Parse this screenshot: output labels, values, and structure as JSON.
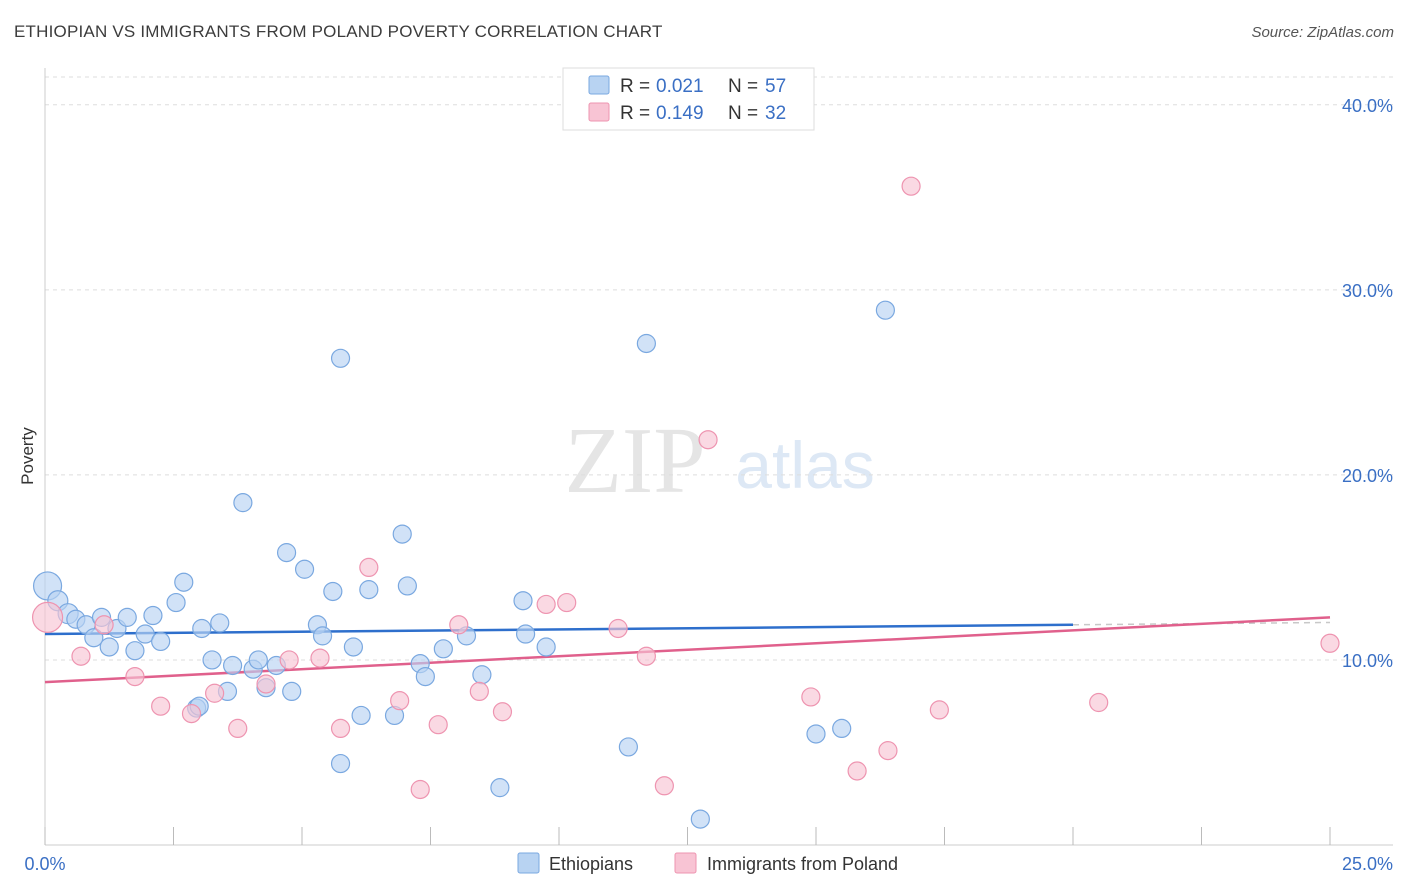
{
  "title": "ETHIOPIAN VS IMMIGRANTS FROM POLAND POVERTY CORRELATION CHART",
  "source": "Source: ZipAtlas.com",
  "watermark": {
    "zip": "ZIP",
    "atlas": "atlas"
  },
  "legend_top": [
    {
      "r_label": "R = ",
      "r_value": "0.021",
      "n_label": "N = ",
      "n_value": "57"
    },
    {
      "r_label": "R = ",
      "r_value": "0.149",
      "n_label": "N = ",
      "n_value": "32"
    }
  ],
  "colors": {
    "ethiopians_fill": "#b8d3f2",
    "ethiopians_stroke": "#7aa8e0",
    "ethiopians_line": "#2e6fcc",
    "poland_fill": "#f8c4d4",
    "poland_stroke": "#ee94b0",
    "poland_line": "#e0608c",
    "grid": "#dddddd",
    "tick_label": "#3a6fc4"
  },
  "chart_data": {
    "type": "scatter",
    "title": "ETHIOPIAN VS IMMIGRANTS FROM POLAND POVERTY CORRELATION CHART",
    "xlabel": "",
    "ylabel": "Poverty",
    "xlim": [
      0,
      25
    ],
    "ylim": [
      0,
      41.5
    ],
    "x_tick_labels": [
      "0.0%",
      "25.0%"
    ],
    "y_ticks": [
      10,
      20,
      30,
      40
    ],
    "y_tick_labels": [
      "10.0%",
      "20.0%",
      "30.0%",
      "40.0%"
    ],
    "grid": "horizontal dashed",
    "legend": "top-center and bottom-center",
    "series": [
      {
        "name": "Ethiopians",
        "r": 0.021,
        "n": 57,
        "trend": {
          "x": [
            0,
            20
          ],
          "y": [
            11.4,
            11.9
          ],
          "dashed_extension_to": 25
        },
        "points": [
          [
            0.05,
            14.0,
            14
          ],
          [
            0.25,
            13.2,
            10
          ],
          [
            0.45,
            12.5,
            10
          ],
          [
            0.6,
            12.2,
            9
          ],
          [
            0.8,
            11.9,
            9
          ],
          [
            0.95,
            11.2,
            9
          ],
          [
            1.1,
            12.3,
            9
          ],
          [
            1.25,
            10.7,
            9
          ],
          [
            1.4,
            11.7,
            9
          ],
          [
            1.6,
            12.3,
            9
          ],
          [
            1.75,
            10.5,
            9
          ],
          [
            1.95,
            11.4,
            9
          ],
          [
            2.1,
            12.4,
            9
          ],
          [
            2.25,
            11.0,
            9
          ],
          [
            2.55,
            13.1,
            9
          ],
          [
            2.7,
            14.2,
            9
          ],
          [
            2.95,
            7.4,
            9
          ],
          [
            3.0,
            7.5,
            9
          ],
          [
            3.05,
            11.7,
            9
          ],
          [
            3.25,
            10.0,
            9
          ],
          [
            3.4,
            12.0,
            9
          ],
          [
            3.55,
            8.3,
            9
          ],
          [
            3.65,
            9.7,
            9
          ],
          [
            3.85,
            18.5,
            9
          ],
          [
            4.05,
            9.5,
            9
          ],
          [
            4.15,
            10.0,
            9
          ],
          [
            4.3,
            8.5,
            9
          ],
          [
            4.5,
            9.7,
            9
          ],
          [
            4.7,
            15.8,
            9
          ],
          [
            4.8,
            8.3,
            9
          ],
          [
            5.05,
            14.9,
            9
          ],
          [
            5.3,
            11.9,
            9
          ],
          [
            5.4,
            11.3,
            9
          ],
          [
            5.6,
            13.7,
            9
          ],
          [
            5.75,
            26.3,
            9
          ],
          [
            5.75,
            4.4,
            9
          ],
          [
            6.0,
            10.7,
            9
          ],
          [
            6.15,
            7.0,
            9
          ],
          [
            6.3,
            13.8,
            9
          ],
          [
            6.8,
            7.0,
            9
          ],
          [
            6.95,
            16.8,
            9
          ],
          [
            7.05,
            14.0,
            9
          ],
          [
            7.3,
            9.8,
            9
          ],
          [
            7.4,
            9.1,
            9
          ],
          [
            7.75,
            10.6,
            9
          ],
          [
            8.2,
            11.3,
            9
          ],
          [
            8.5,
            9.2,
            9
          ],
          [
            8.85,
            3.1,
            9
          ],
          [
            9.3,
            13.2,
            9
          ],
          [
            9.35,
            11.4,
            9
          ],
          [
            9.75,
            10.7,
            9
          ],
          [
            11.35,
            5.3,
            9
          ],
          [
            11.7,
            27.1,
            9
          ],
          [
            12.75,
            1.4,
            9
          ],
          [
            15.0,
            6.0,
            9
          ],
          [
            15.5,
            6.3,
            9
          ],
          [
            16.35,
            28.9,
            9
          ]
        ]
      },
      {
        "name": "Immigrants from Poland",
        "r": 0.149,
        "n": 32,
        "trend": {
          "x": [
            0,
            25
          ],
          "y": [
            8.8,
            12.3
          ]
        },
        "points": [
          [
            0.05,
            12.3,
            15
          ],
          [
            0.7,
            10.2,
            9
          ],
          [
            1.15,
            11.9,
            9
          ],
          [
            1.75,
            9.1,
            9
          ],
          [
            2.25,
            7.5,
            9
          ],
          [
            2.85,
            7.1,
            9
          ],
          [
            3.3,
            8.2,
            9
          ],
          [
            3.75,
            6.3,
            9
          ],
          [
            4.3,
            8.7,
            9
          ],
          [
            4.75,
            10.0,
            9
          ],
          [
            5.35,
            10.1,
            9
          ],
          [
            5.75,
            6.3,
            9
          ],
          [
            6.3,
            15.0,
            9
          ],
          [
            6.9,
            7.8,
            9
          ],
          [
            7.3,
            3.0,
            9
          ],
          [
            7.65,
            6.5,
            9
          ],
          [
            8.05,
            11.9,
            9
          ],
          [
            8.45,
            8.3,
            9
          ],
          [
            8.9,
            7.2,
            9
          ],
          [
            9.75,
            13.0,
            9
          ],
          [
            10.15,
            13.1,
            9
          ],
          [
            11.15,
            11.7,
            9
          ],
          [
            11.7,
            10.2,
            9
          ],
          [
            12.05,
            3.2,
            9
          ],
          [
            12.9,
            21.9,
            9
          ],
          [
            14.9,
            8.0,
            9
          ],
          [
            15.8,
            4.0,
            9
          ],
          [
            16.4,
            5.1,
            9
          ],
          [
            16.85,
            35.6,
            9
          ],
          [
            17.4,
            7.3,
            9
          ],
          [
            20.5,
            7.7,
            9
          ],
          [
            25.0,
            10.9,
            9
          ]
        ]
      }
    ]
  },
  "bottom_legend": [
    "Ethiopians",
    "Immigrants from Poland"
  ]
}
